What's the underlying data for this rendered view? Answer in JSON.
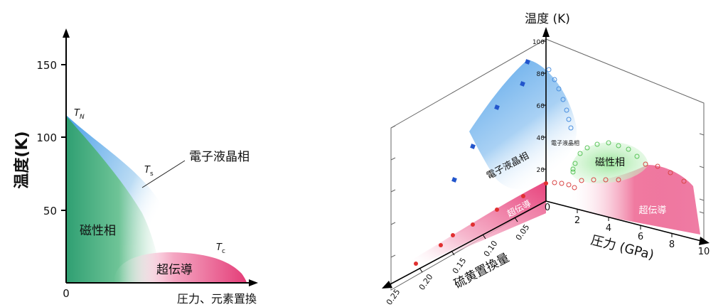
{
  "left": {
    "y_label": "温度(K)",
    "x_label": "圧力、元素置換",
    "y_ticks": [
      "150",
      "100",
      "50",
      "0"
    ],
    "tn_T": "T",
    "tn_sub": "N",
    "ts_T": "T",
    "ts_sub": "s",
    "tc_T": "T",
    "tc_sub": "c",
    "nematic": "電子液晶相",
    "magnetic": "磁性相",
    "superconducting": "超伝導"
  },
  "right": {
    "z_label": "温度 (K)",
    "z_ticks": [
      "100",
      "80",
      "60",
      "40",
      "20",
      "0"
    ],
    "pressure_label": "圧力 (GPa)",
    "pressure_ticks": [
      "2",
      "4",
      "6",
      "8",
      "10"
    ],
    "sulfur_label": "硫黄置換量",
    "sulfur_ticks": [
      "0.05",
      "0.10",
      "0.15",
      "0.20",
      "0.25"
    ],
    "nematic_big": "電子液晶相",
    "nematic_small": "電子液晶相",
    "magnetic": "磁性相",
    "sc_left": "超伝導",
    "sc_right": "超伝導"
  },
  "colors": {
    "magnetic": "#3daa78",
    "nematic": "#5aa6ea",
    "superconducting": "#e8457e",
    "magnetic_light": "#9be69b",
    "blue_marker": "#2255cc",
    "red_marker": "#e03030"
  }
}
